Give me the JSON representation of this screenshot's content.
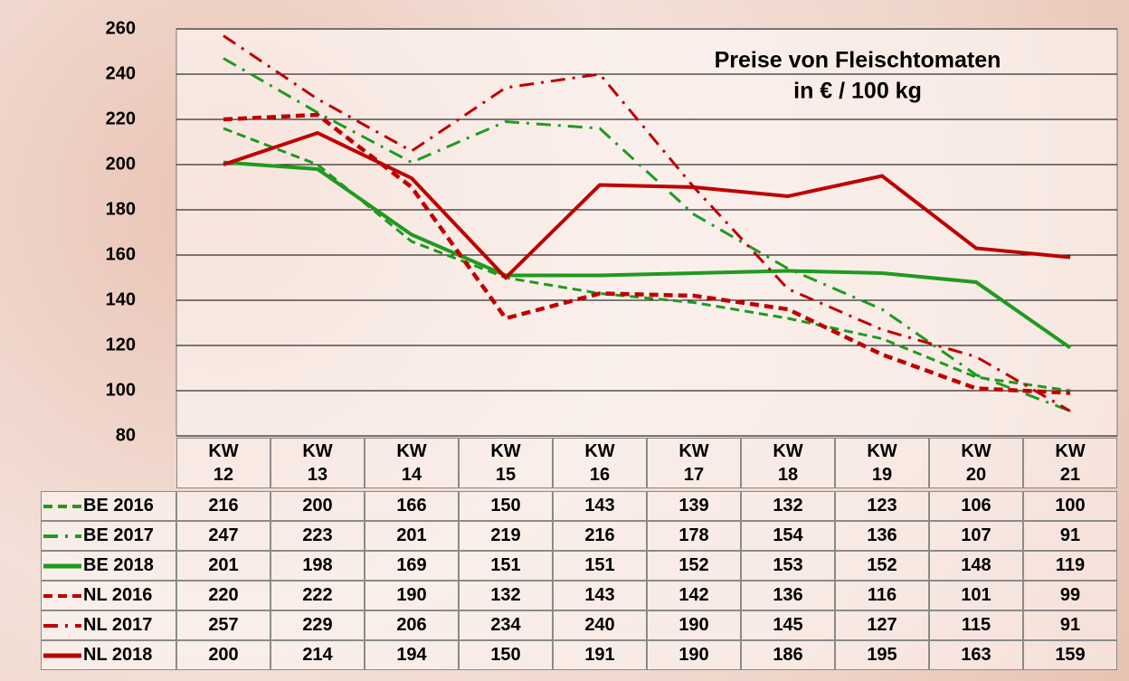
{
  "chart_data": {
    "type": "line",
    "title": "Preise von Fleischtomaten",
    "subtitle": "in € / 100 kg",
    "categories": [
      "KW 12",
      "KW 13",
      "KW 14",
      "KW 15",
      "KW 16",
      "KW 17",
      "KW 18",
      "KW 19",
      "KW 20",
      "KW 21"
    ],
    "ylim": [
      80,
      260
    ],
    "yticks": [
      80,
      100,
      120,
      140,
      160,
      180,
      200,
      220,
      240,
      260
    ],
    "grid": true,
    "series": [
      {
        "name": "BE 2016",
        "color": "#1f9a1f",
        "style": "dashed",
        "values": [
          216,
          200,
          166,
          150,
          143,
          139,
          132,
          123,
          106,
          100
        ]
      },
      {
        "name": "BE 2017",
        "color": "#1f9a1f",
        "style": "dashdot",
        "values": [
          247,
          223,
          201,
          219,
          216,
          178,
          154,
          136,
          107,
          91
        ]
      },
      {
        "name": "BE 2018",
        "color": "#1f9a1f",
        "style": "solid",
        "values": [
          201,
          198,
          169,
          151,
          151,
          152,
          153,
          152,
          148,
          119
        ]
      },
      {
        "name": "NL 2016",
        "color": "#c00000",
        "style": "dashed",
        "values": [
          220,
          222,
          190,
          132,
          143,
          142,
          136,
          116,
          101,
          99
        ]
      },
      {
        "name": "NL 2017",
        "color": "#c00000",
        "style": "dashdot",
        "values": [
          257,
          229,
          206,
          234,
          240,
          190,
          145,
          127,
          115,
          91
        ]
      },
      {
        "name": "NL 2018",
        "color": "#c00000",
        "style": "solid",
        "values": [
          200,
          214,
          194,
          150,
          191,
          190,
          186,
          195,
          163,
          159
        ]
      }
    ]
  }
}
